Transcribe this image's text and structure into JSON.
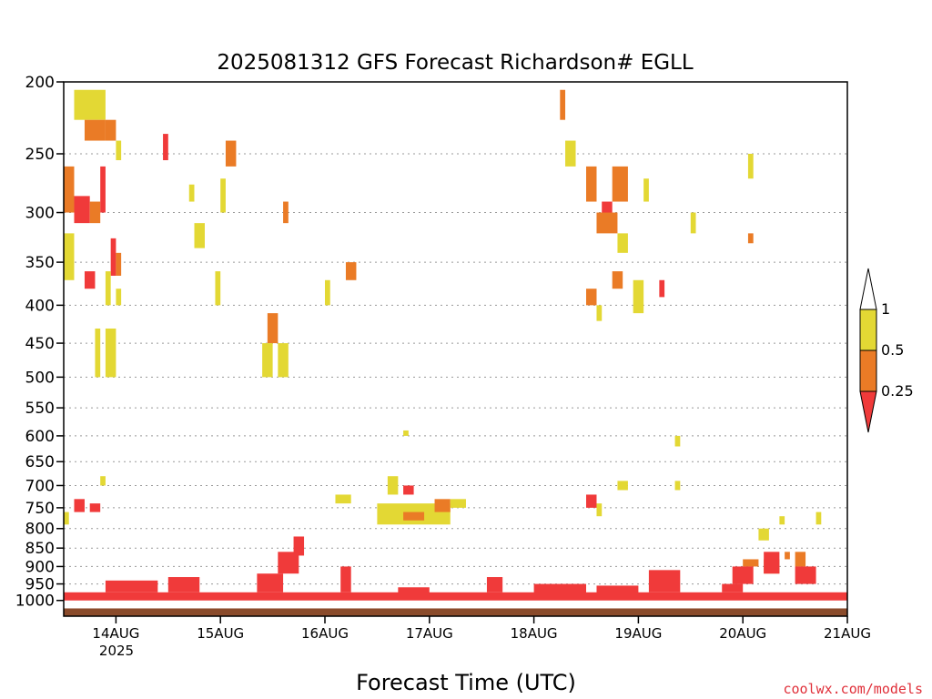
{
  "chart_data": {
    "type": "heatmap",
    "title": "2025081312 GFS Forecast Richardson# EGLL",
    "xlabel": "Forecast Time (UTC)",
    "ylabel": "",
    "credit": "coolwx.com/models",
    "x_ticks": [
      "14AUG",
      "15AUG",
      "16AUG",
      "17AUG",
      "18AUG",
      "19AUG",
      "20AUG",
      "21AUG"
    ],
    "x_tick_year": "2025",
    "x_range": [
      "2025-08-13 12Z",
      "2025-08-21 00Z"
    ],
    "y_axis": "pressure (hPa), log scale, inverted",
    "y_ticks": [
      200,
      250,
      300,
      350,
      400,
      450,
      500,
      550,
      600,
      650,
      700,
      750,
      800,
      850,
      900,
      950,
      1000
    ],
    "ylim": [
      1050,
      200
    ],
    "grid": "dotted horizontal at each pressure tick",
    "colorbar": {
      "placement": "right",
      "labels": [
        "1",
        "0.5",
        "0.25"
      ],
      "bands": [
        {
          "range": "0.5-1",
          "color": "#e3d834"
        },
        {
          "range": "0.25-0.5",
          "color": "#ea7b26"
        },
        {
          "range": "<0.25",
          "color": "#f03a3a"
        }
      ],
      "open_ends": true
    },
    "ground_color": "#8a4b2b",
    "cells": [
      [
        0.1,
        0.4,
        205,
        225,
        "y"
      ],
      [
        0.2,
        0.4,
        225,
        240,
        "o"
      ],
      [
        0.4,
        0.5,
        225,
        240,
        "o"
      ],
      [
        0.5,
        0.55,
        240,
        255,
        "y"
      ],
      [
        0.0,
        0.1,
        260,
        300,
        "o"
      ],
      [
        0.1,
        0.25,
        285,
        310,
        "r"
      ],
      [
        0.25,
        0.35,
        290,
        310,
        "o"
      ],
      [
        0.35,
        0.4,
        260,
        300,
        "r"
      ],
      [
        0.45,
        0.5,
        325,
        365,
        "r"
      ],
      [
        0.5,
        0.55,
        340,
        365,
        "o"
      ],
      [
        0.0,
        0.1,
        320,
        370,
        "y"
      ],
      [
        0.2,
        0.3,
        360,
        380,
        "r"
      ],
      [
        0.4,
        0.45,
        360,
        400,
        "y"
      ],
      [
        0.5,
        0.55,
        380,
        400,
        "y"
      ],
      [
        0.3,
        0.35,
        430,
        500,
        "y"
      ],
      [
        0.4,
        0.5,
        430,
        500,
        "y"
      ],
      [
        0.95,
        1.0,
        235,
        255,
        "r"
      ],
      [
        1.2,
        1.25,
        275,
        290,
        "y"
      ],
      [
        1.25,
        1.35,
        310,
        335,
        "y"
      ],
      [
        1.55,
        1.65,
        240,
        260,
        "o"
      ],
      [
        1.5,
        1.55,
        270,
        300,
        "y"
      ],
      [
        1.45,
        1.5,
        360,
        400,
        "y"
      ],
      [
        1.95,
        2.05,
        410,
        450,
        "o"
      ],
      [
        1.9,
        2.0,
        450,
        500,
        "y"
      ],
      [
        2.05,
        2.15,
        450,
        500,
        "y"
      ],
      [
        2.1,
        2.15,
        290,
        310,
        "o"
      ],
      [
        2.7,
        2.8,
        350,
        370,
        "o"
      ],
      [
        2.5,
        2.55,
        370,
        400,
        "y"
      ],
      [
        4.75,
        4.8,
        205,
        225,
        "o"
      ],
      [
        4.8,
        4.9,
        240,
        260,
        "y"
      ],
      [
        5.0,
        5.1,
        260,
        290,
        "o"
      ],
      [
        5.15,
        5.25,
        290,
        310,
        "r"
      ],
      [
        5.25,
        5.4,
        260,
        290,
        "o"
      ],
      [
        5.1,
        5.3,
        300,
        320,
        "o"
      ],
      [
        5.3,
        5.4,
        320,
        340,
        "y"
      ],
      [
        5.55,
        5.6,
        270,
        290,
        "y"
      ],
      [
        5.25,
        5.35,
        360,
        380,
        "o"
      ],
      [
        5.7,
        5.75,
        370,
        390,
        "r"
      ],
      [
        5.45,
        5.55,
        370,
        410,
        "y"
      ],
      [
        5.1,
        5.15,
        400,
        420,
        "y"
      ],
      [
        5.0,
        5.1,
        380,
        400,
        "o"
      ],
      [
        6.0,
        6.05,
        300,
        320,
        "y"
      ],
      [
        6.55,
        6.6,
        320,
        330,
        "o"
      ],
      [
        6.55,
        6.6,
        250,
        270,
        "y"
      ],
      [
        3.25,
        3.3,
        590,
        600,
        "y"
      ],
      [
        3.1,
        3.2,
        680,
        720,
        "y"
      ],
      [
        2.6,
        2.75,
        720,
        740,
        "y"
      ],
      [
        3.0,
        3.7,
        740,
        790,
        "y"
      ],
      [
        3.25,
        3.45,
        760,
        780,
        "o"
      ],
      [
        3.25,
        3.35,
        700,
        720,
        "r"
      ],
      [
        3.55,
        3.7,
        730,
        760,
        "o"
      ],
      [
        3.7,
        3.85,
        730,
        750,
        "y"
      ],
      [
        0.1,
        0.2,
        730,
        760,
        "r"
      ],
      [
        0.25,
        0.35,
        740,
        760,
        "r"
      ],
      [
        0.0,
        0.05,
        760,
        790,
        "y"
      ],
      [
        0.35,
        0.4,
        680,
        700,
        "y"
      ],
      [
        5.0,
        5.1,
        720,
        750,
        "r"
      ],
      [
        5.1,
        5.15,
        740,
        770,
        "y"
      ],
      [
        5.3,
        5.4,
        690,
        710,
        "y"
      ],
      [
        5.85,
        5.9,
        600,
        620,
        "y"
      ],
      [
        5.85,
        5.9,
        690,
        710,
        "y"
      ],
      [
        6.85,
        6.9,
        770,
        790,
        "y"
      ],
      [
        6.65,
        6.75,
        800,
        830,
        "y"
      ],
      [
        6.9,
        6.95,
        860,
        880,
        "o"
      ],
      [
        7.0,
        7.1,
        860,
        900,
        "o"
      ],
      [
        6.7,
        6.85,
        880,
        920,
        "o"
      ],
      [
        6.5,
        6.65,
        880,
        900,
        "o"
      ],
      [
        7.2,
        7.25,
        760,
        790,
        "y"
      ],
      [
        0.0,
        7.5,
        975,
        1000,
        "r"
      ],
      [
        0.4,
        0.9,
        940,
        975,
        "r"
      ],
      [
        1.0,
        1.3,
        930,
        975,
        "r"
      ],
      [
        1.85,
        2.1,
        920,
        975,
        "r"
      ],
      [
        2.05,
        2.25,
        860,
        920,
        "r"
      ],
      [
        2.2,
        2.3,
        820,
        870,
        "r"
      ],
      [
        2.65,
        2.75,
        900,
        975,
        "r"
      ],
      [
        3.2,
        3.5,
        960,
        985,
        "r"
      ],
      [
        4.05,
        4.2,
        930,
        975,
        "r"
      ],
      [
        4.5,
        5.0,
        950,
        990,
        "r"
      ],
      [
        5.1,
        5.5,
        955,
        990,
        "r"
      ],
      [
        5.6,
        5.9,
        910,
        975,
        "r"
      ],
      [
        6.3,
        6.5,
        950,
        975,
        "r"
      ],
      [
        6.4,
        6.6,
        900,
        950,
        "r"
      ],
      [
        6.7,
        6.85,
        860,
        920,
        "r"
      ],
      [
        7.0,
        7.2,
        900,
        950,
        "r"
      ]
    ]
  }
}
